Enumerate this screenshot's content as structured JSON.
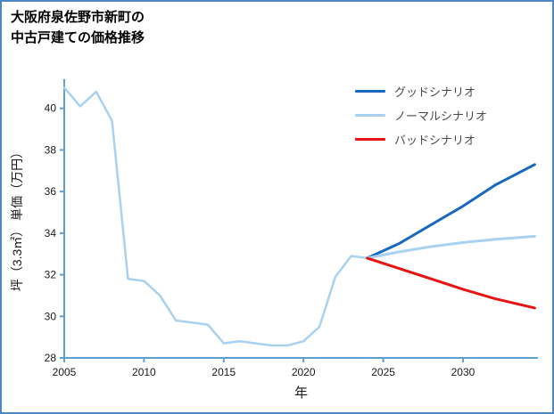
{
  "window": {
    "border_color": "#4a86c8",
    "background": "#ffffff"
  },
  "title": {
    "line1": "大阪府泉佐野市新町の",
    "line2": "中古戸建ての価格推移"
  },
  "legend": [
    {
      "label": "グッドシナリオ",
      "color": "#1668c0"
    },
    {
      "label": "ノーマルシナリオ",
      "color": "#a8d2f0"
    },
    {
      "label": "バッドシナリオ",
      "color": "#e91313"
    }
  ],
  "chart_data": {
    "type": "line",
    "title": "大阪府泉佐野市新町の中古戸建ての価格推移",
    "xlabel": "年",
    "ylabel": "坪（3.3㎡） 単価（万円）",
    "xlim": [
      2005,
      2034.7
    ],
    "ylim": [
      28,
      41.4
    ],
    "xticks": [
      2005,
      2010,
      2015,
      2020,
      2025,
      2030
    ],
    "yticks": [
      28,
      30,
      32,
      34,
      36,
      38,
      40
    ],
    "grid": false,
    "legend_position": "upper right",
    "axis_color": "#5da0d2",
    "text_color": "#1a1a1a",
    "series": [
      {
        "name": "history",
        "color": "#a8d2f0",
        "width": 2.5,
        "x": [
          2005,
          2006,
          2007,
          2008,
          2009,
          2010,
          2011,
          2012,
          2013,
          2014,
          2015,
          2016,
          2017,
          2018,
          2019,
          2020,
          2021,
          2022,
          2023,
          2024
        ],
        "y": [
          41.0,
          40.1,
          40.8,
          39.4,
          31.8,
          31.7,
          31.0,
          29.8,
          29.7,
          29.6,
          28.7,
          28.8,
          28.7,
          28.6,
          28.6,
          28.8,
          29.5,
          31.9,
          32.9,
          32.8
        ]
      },
      {
        "name": "good-scenario",
        "color": "#1668c0",
        "width": 3,
        "x": [
          2024,
          2026,
          2028,
          2030,
          2032,
          2034.5
        ],
        "y": [
          32.8,
          33.5,
          34.4,
          35.3,
          36.3,
          37.3
        ]
      },
      {
        "name": "normal-scenario",
        "color": "#a8d2f0",
        "width": 3,
        "x": [
          2024,
          2026,
          2028,
          2030,
          2032,
          2034.5
        ],
        "y": [
          32.8,
          33.1,
          33.35,
          33.55,
          33.7,
          33.85
        ]
      },
      {
        "name": "bad-scenario",
        "color": "#e91313",
        "width": 3,
        "x": [
          2024,
          2026,
          2028,
          2030,
          2032,
          2034.5
        ],
        "y": [
          32.8,
          32.3,
          31.8,
          31.3,
          30.85,
          30.4
        ]
      }
    ]
  }
}
